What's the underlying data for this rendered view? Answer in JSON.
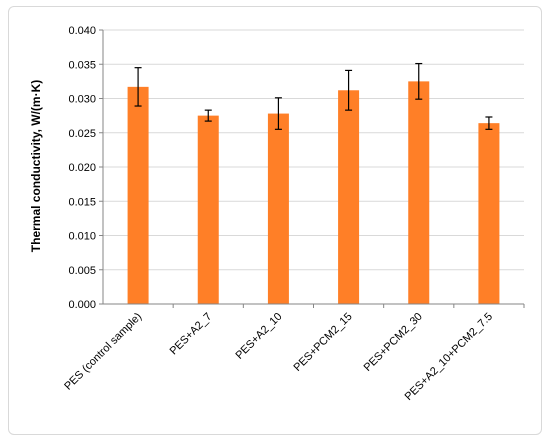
{
  "chart_data": {
    "type": "bar",
    "title": "",
    "xlabel": "",
    "ylabel": "Thermal conductivity, W/(m·K)",
    "ylim": [
      0,
      0.04
    ],
    "ytick_step": 0.005,
    "ytick_labels": [
      "0.000",
      "0.005",
      "0.010",
      "0.015",
      "0.020",
      "0.025",
      "0.030",
      "0.035",
      "0.040"
    ],
    "grid": true,
    "legend": "none",
    "categories": [
      "PES (control sample)",
      "PES+A2_7",
      "PES+A2_10",
      "PES+PCM2_15",
      "PES+PCM2_30",
      "PES+A2_10+PCM2_7.5"
    ],
    "series": [
      {
        "values": [
          0.0317,
          0.0275,
          0.0278,
          0.0312,
          0.0325,
          0.0264
        ],
        "error": [
          0.0028,
          0.0008,
          0.0023,
          0.0029,
          0.0026,
          0.0009
        ],
        "color": "#FF7F27"
      }
    ]
  }
}
